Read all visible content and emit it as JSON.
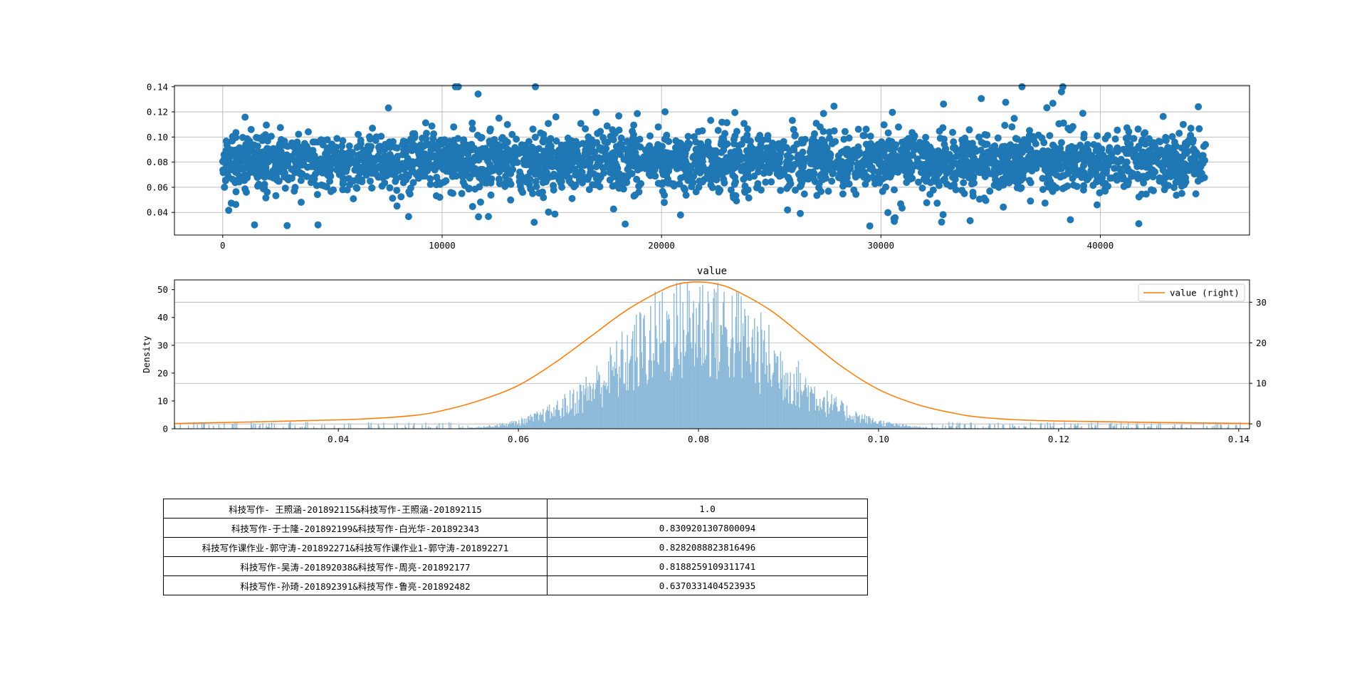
{
  "chart_data": [
    {
      "type": "scatter",
      "title": "",
      "xlabel": "",
      "ylabel": "",
      "xlim": [
        -2200,
        46800
      ],
      "ylim": [
        0.022,
        0.141
      ],
      "x_ticks": [
        0,
        10000,
        20000,
        30000,
        40000
      ],
      "x_tick_labels": [
        "0",
        "10000",
        "20000",
        "30000",
        "40000"
      ],
      "y_ticks": [
        0.04,
        0.06,
        0.08,
        0.1,
        0.12,
        0.14
      ],
      "y_tick_labels": [
        "0.04",
        "0.06",
        "0.08",
        "0.10",
        "0.12",
        "0.14"
      ],
      "grid": true,
      "marker_color": "#1f77b4",
      "n_points_approx": 44800,
      "center": 0.08,
      "spread": 0.011,
      "x_range": [
        0,
        44800
      ]
    },
    {
      "type": "histogram",
      "title": "value",
      "xlabel": "",
      "ylabel": "Density",
      "xlim": [
        0.0218,
        0.1412
      ],
      "ylim": [
        0,
        53.5
      ],
      "y2lim": [
        -1.2,
        35.5
      ],
      "x_ticks": [
        0.04,
        0.06,
        0.08,
        0.1,
        0.12,
        0.14
      ],
      "x_tick_labels": [
        "0.04",
        "0.06",
        "0.08",
        "0.10",
        "0.12",
        "0.14"
      ],
      "y_ticks": [
        0,
        10,
        20,
        30,
        40,
        50
      ],
      "y_tick_labels": [
        "0",
        "10",
        "20",
        "30",
        "40",
        "50"
      ],
      "y2_ticks": [
        0,
        10,
        20,
        30
      ],
      "y2_tick_labels": [
        "0",
        "10",
        "20",
        "30"
      ],
      "grid": true,
      "bar_color": "#8db9d9",
      "line_color": "#ff7f0e",
      "legend": "value (right)",
      "legend_position": "top-right",
      "kde_x": [
        0.0218,
        0.04,
        0.048,
        0.052,
        0.056,
        0.06,
        0.064,
        0.068,
        0.072,
        0.076,
        0.078,
        0.08,
        0.082,
        0.084,
        0.088,
        0.092,
        0.096,
        0.1,
        0.104,
        0.108,
        0.112,
        0.12,
        0.1412
      ],
      "kde_y": [
        0.1,
        1.0,
        2.0,
        3.5,
        6.0,
        9.5,
        15.0,
        21.5,
        28.0,
        33.0,
        34.6,
        35.0,
        34.5,
        33.0,
        28.0,
        21.0,
        14.0,
        8.5,
        5.0,
        2.8,
        1.5,
        0.7,
        0.1
      ],
      "bins_approx": 1200,
      "center": 0.08,
      "spread": 0.0085
    }
  ],
  "table": {
    "rows": [
      {
        "pair": "科技写作- 王照涵-201892115&科技写作-王照涵-201892115",
        "value": "1.0"
      },
      {
        "pair": "科技写作-于士隆-201892199&科技写作-白光华-201892343",
        "value": "0.8309201307800094"
      },
      {
        "pair": "科技写作课作业-郭守涛-201892271&科技写作课作业1-郭守涛-201892271",
        "value": "0.8282088823816496"
      },
      {
        "pair": "科技写作-吴涛-201892038&科技写作-周亮-201892177",
        "value": "0.8188259109311741"
      },
      {
        "pair": "科技写作-孙琦-201892391&科技写作-鲁亮-201892482",
        "value": "0.6370331404523935"
      }
    ]
  }
}
